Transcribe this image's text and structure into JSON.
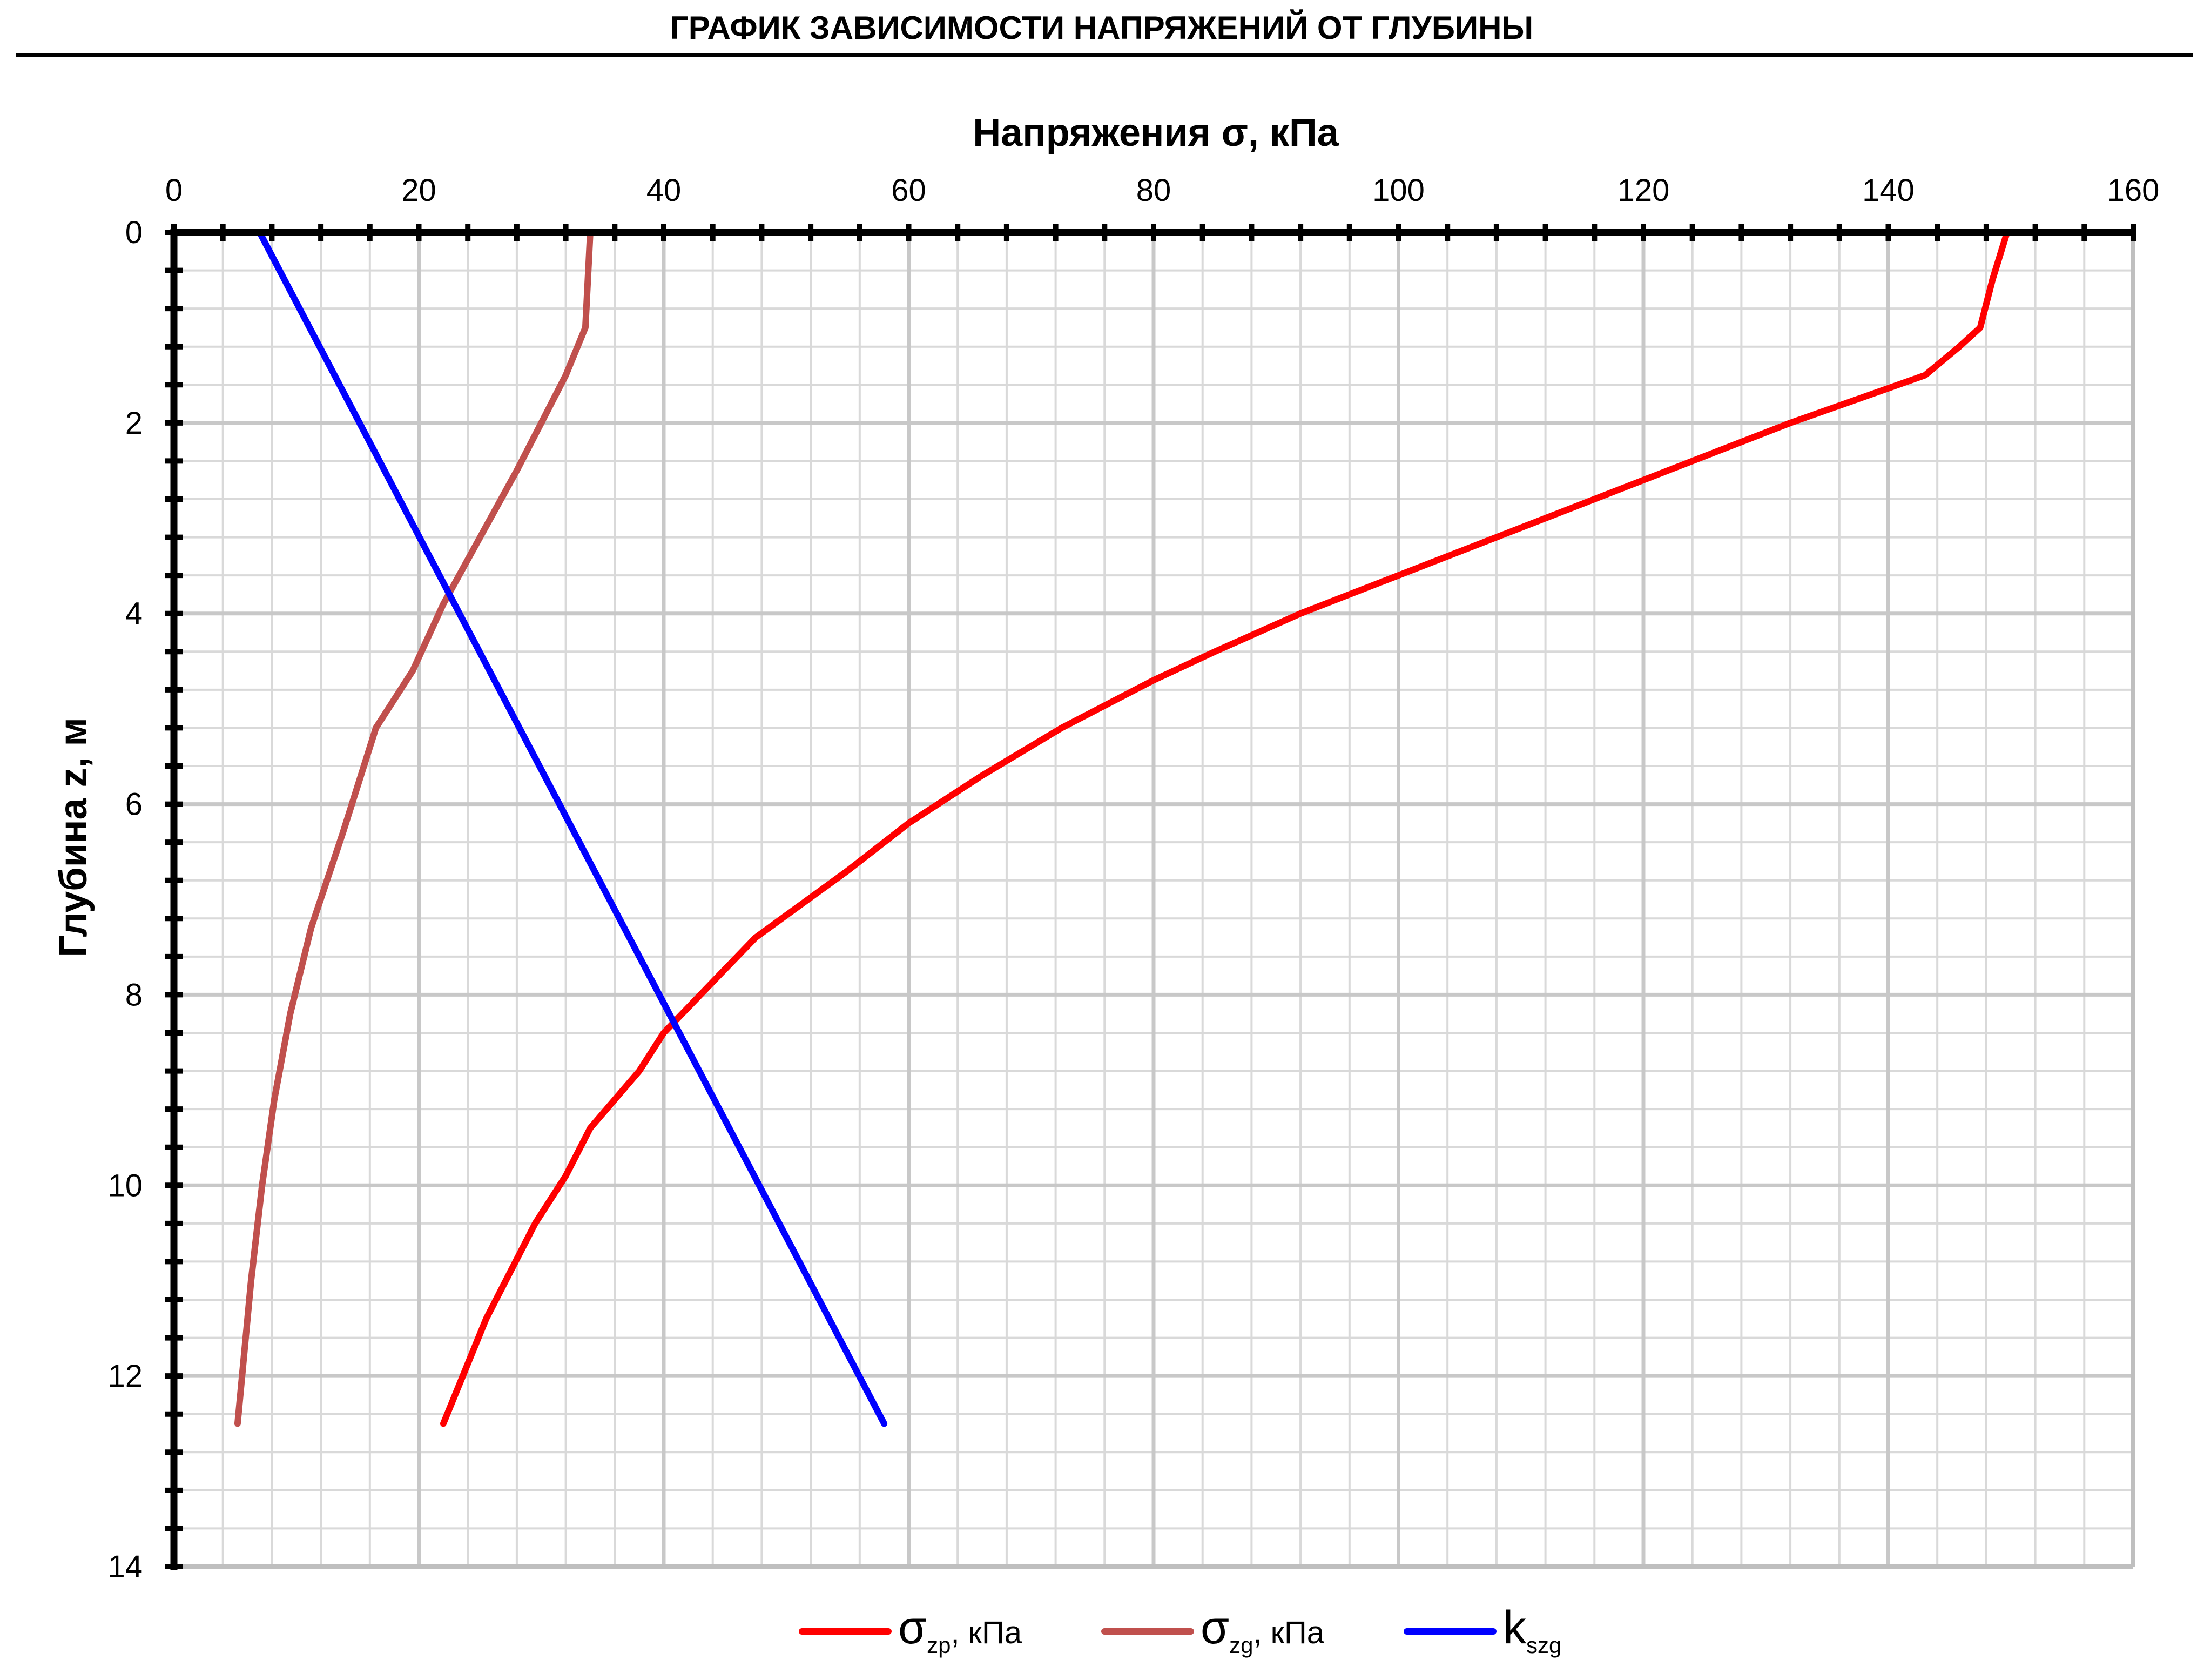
{
  "chart_data": {
    "type": "line",
    "title": "ГРАФИК ЗАВИСИМОСТИ НАПРЯЖЕНИЙ ОТ ГЛУБИНЫ",
    "xlabel": "Напряжения σ, кПа",
    "ylabel": "Глубина z, м",
    "x_axis_position": "top",
    "y_axis_inverted": true,
    "xlim": [
      0,
      160
    ],
    "ylim": [
      0,
      14
    ],
    "x_ticks": [
      "0",
      "20",
      "40",
      "60",
      "80",
      "100",
      "120",
      "140",
      "160"
    ],
    "y_ticks": [
      "0",
      "2",
      "4",
      "6",
      "8",
      "10",
      "12",
      "14"
    ],
    "x_tick_values": [
      0,
      20,
      40,
      60,
      80,
      100,
      120,
      140,
      160
    ],
    "y_tick_values": [
      0,
      2,
      4,
      6,
      8,
      10,
      12,
      14
    ],
    "x_minor_step": 4,
    "y_minor_step": 0.4,
    "grid": true,
    "legend_position": "bottom",
    "series": [
      {
        "name": "σzp, кПа",
        "legend_symbol": "σ",
        "legend_subscript": "zp",
        "legend_suffix": ", кПа",
        "color": "#ff0000",
        "points": [
          [
            149.7,
            0
          ],
          [
            148.5,
            0.5
          ],
          [
            147.5,
            1.0
          ],
          [
            145.8,
            1.2
          ],
          [
            143,
            1.5
          ],
          [
            132,
            2.0
          ],
          [
            128,
            2.2
          ],
          [
            120,
            2.6
          ],
          [
            110,
            3.1
          ],
          [
            100,
            3.6
          ],
          [
            92,
            4.0
          ],
          [
            85,
            4.4
          ],
          [
            80,
            4.7
          ],
          [
            72.5,
            5.2
          ],
          [
            66,
            5.7
          ],
          [
            60,
            6.2
          ],
          [
            55,
            6.7
          ],
          [
            47.5,
            7.4
          ],
          [
            44.5,
            7.8
          ],
          [
            40,
            8.4
          ],
          [
            38,
            8.8
          ],
          [
            34,
            9.4
          ],
          [
            32,
            9.9
          ],
          [
            29.5,
            10.4
          ],
          [
            25.5,
            11.4
          ],
          [
            22,
            12.5
          ]
        ]
      },
      {
        "name": "σzg, кПа",
        "legend_symbol": "σ",
        "legend_subscript": "zg",
        "legend_suffix": ", кПа",
        "color": "#c0504d",
        "points": [
          [
            34,
            0
          ],
          [
            33.8,
            0.5
          ],
          [
            33.6,
            1.0
          ],
          [
            32,
            1.5
          ],
          [
            30,
            2.0
          ],
          [
            28,
            2.5
          ],
          [
            25,
            3.2
          ],
          [
            22,
            3.9
          ],
          [
            19.5,
            4.6
          ],
          [
            16.5,
            5.2
          ],
          [
            13.8,
            6.3
          ],
          [
            11.2,
            7.3
          ],
          [
            9.5,
            8.2
          ],
          [
            8.2,
            9.1
          ],
          [
            7.2,
            10.0
          ],
          [
            6.3,
            11.0
          ],
          [
            5.2,
            12.5
          ]
        ]
      },
      {
        "name": "kszg",
        "legend_symbol": "k",
        "legend_subscript": "szg",
        "legend_suffix": "",
        "color": "#0000ff",
        "points": [
          [
            7,
            0
          ],
          [
            58,
            12.5
          ]
        ]
      }
    ]
  }
}
